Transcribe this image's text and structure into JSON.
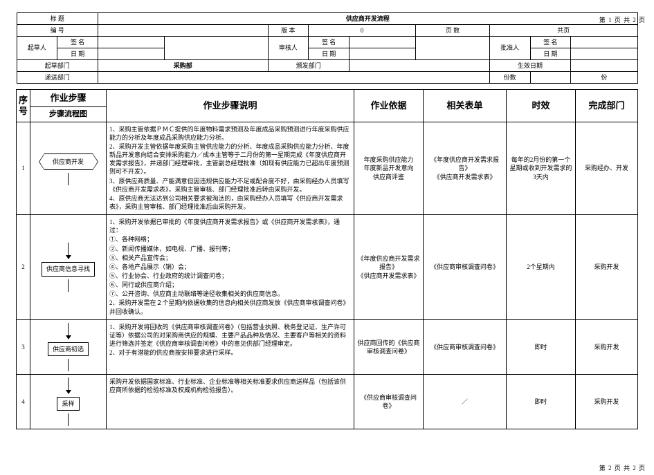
{
  "page_top": "第 1 页    共 2 页",
  "page_bot": "第 2 页    共 2 页",
  "header": {
    "title_lbl": "标  题",
    "title_val": "供应商开发流程",
    "no_lbl": "编  号",
    "no_val": "",
    "ver_lbl": "版  本",
    "ver_val": "0",
    "pages_lbl": "页  数",
    "pages_val": "共页",
    "drafter_lbl": "起草人",
    "reviewer_lbl": "审核人",
    "approver_lbl": "批准人",
    "sign_lbl": "签  名",
    "date_lbl": "日  期",
    "draft_dept_lbl": "起草部门",
    "draft_dept_val": "采购部",
    "dist_dept_lbl": "颁发部门",
    "dist_dept_val": "",
    "eff_date_lbl": "生效日期",
    "eff_date_val": "",
    "send_dept_lbl": "递送部门",
    "copies_lbl": "份数",
    "copies_unit": "份"
  },
  "cols": {
    "seq": "序号",
    "steps": "作业步骤",
    "flow": "步骤流程图",
    "desc": "作业步骤说明",
    "basis": "作业依据",
    "forms": "相关表单",
    "time": "时效",
    "dept": "完成部门"
  },
  "rows": [
    {
      "seq": "1",
      "flow_label": "供应商开发",
      "flow_shape": "hex",
      "desc": [
        "1、采购主管依据ＰＭＣ提供的年度物料需求预测及年度成品采购预测进行年度采购供应能力的分析及年度成品采购供应能力分析。",
        "2、采购开发主管依据年度采购主管供应能力的分析、年度成品采购供应能力分析、年度新品开发意向结合安排采购能力／成本主管等于二月份的第一星期完成《年度供应商开发需求报告》，并递部门经理审批，主管副总经理批准（如现有供应能力已超出年度预测则可不开发）。",
        "3、原供应商质量、产能满意但因违规供应能力不足或配合度不好，由采购经办人员填写《供应商开发需求表》，采购主管审核、部门经理批准后转由采购开发。",
        "4、原供应商无法达到公司相关要求被淘汰的，由采购经办人员填写《供应商开发需求表》，采购主管审核、部门经理批准后由采购开发。"
      ],
      "basis": "年度采购供应能力\n年度新品开发意向\n供应商评鉴",
      "forms": "《年度供应商开发需求报告》\n《供应商开发需求表》",
      "time": "每年的2月份的第一个星期或收到开发需求的3天内",
      "dept": "采购经办、开发"
    },
    {
      "seq": "2",
      "flow_label": "供应商信息寻找",
      "flow_shape": "rect",
      "desc": [
        "1、采购开发依据已审批的《年度供应商开发需求报告》或《供应商开发需求表》，通过：",
        "①、各种网络；",
        "②、新闻传播媒体，如电视、广播、报刊等；",
        "③、相关产品宣传会；",
        "④、各地产品展示（销）会；",
        "⑤、行业协会、行业政府的统计调查问卷；",
        "⑥、同行或供应商介绍；",
        "⑦、公开咨询、供应商主动联络等途径收集相关的供应商信息。",
        "2、采购开发需在２个星期内依据收集的信息向相关供应商发放《供应商审核调查问卷》并回收确认。"
      ],
      "basis": "《年度供应商开发需求报告》\n《供应商开发需求表》",
      "forms": "《供应商审核调查问卷》",
      "time": "2个星期内",
      "dept": "采购开发"
    },
    {
      "seq": "3",
      "flow_label": "供应商初选",
      "flow_shape": "rect",
      "desc": [
        "1、采购开发将回收的《供应商审核调查问卷》（包括营业执照、税务登记证、生产许可证等）依据公司的对采购商供应的规模、主要产品品种及情况、主要客户等相关的资料进行筛选并签定《供应商审核调查问卷》中的意见供部门经理审定。",
        "2、对于有潜能的供应商按安排要求进行采样。"
      ],
      "basis": "供应商回传的《供应商审核调查问卷》",
      "forms": "《供应商审核调查问卷》",
      "time": "即时",
      "dept": "采购开发"
    },
    {
      "seq": "4",
      "flow_label": "采样",
      "flow_shape": "rect",
      "desc": [
        "采购开发依据国家标准、行业标准、企业标准等相关标准要求供应商送样品（包括该供应商所依据的检验标准及权威机构检验报告）。"
      ],
      "basis": "《供应商审核调查问卷》",
      "forms": "／",
      "time": "即时",
      "dept": "采购开发"
    }
  ]
}
